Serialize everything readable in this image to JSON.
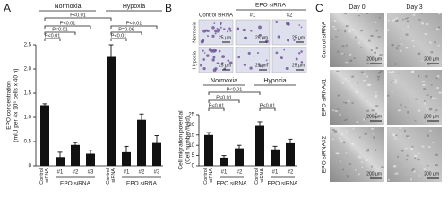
{
  "panel_labels": [
    "A",
    "B",
    "C"
  ],
  "chart_data": [
    {
      "type": "bar",
      "y_label": [
        "EPO concentration",
        "(mIU per 4x 10⁵ cells x 40 h)"
      ],
      "categories": [
        "Control siRNA",
        "#1",
        "#2",
        "#3",
        "Control siRNA",
        "#1",
        "#2",
        "#3"
      ],
      "group_labels": [
        "Normoxia",
        "Hypoxia"
      ],
      "subgroup_labels": [
        "EPO siRNA",
        "EPO siRNA"
      ],
      "values": [
        1.25,
        0.18,
        0.43,
        0.25,
        2.25,
        0.28,
        0.95,
        0.47
      ],
      "errors": [
        0.03,
        0.1,
        0.05,
        0.07,
        0.25,
        0.12,
        0.12,
        0.15
      ],
      "color": "#111111",
      "ylim": [
        0,
        2.5
      ],
      "yticks": [
        0,
        0.5,
        {
          "value": 1,
          "label": "1.0"
        },
        1.5,
        {
          "value": 2,
          "label": "2.0"
        },
        2.5
      ],
      "annotations": [
        "P<0.01",
        "P<0.01",
        "P<0.01",
        "P<0.01",
        "P<0.01",
        "P=0.06",
        "P<0.01"
      ]
    },
    {
      "type": "bar",
      "y_label": [
        "Cell migration potential",
        "(Cell number/field)"
      ],
      "categories": [
        "Control siRNA",
        "#1",
        "#2",
        "Control siRNA",
        "#1",
        "#2"
      ],
      "group_labels": [
        "Normoxia",
        "Hypoxia"
      ],
      "subgroup_labels": [
        "EPO siRNA",
        "EPO siRNA"
      ],
      "values": [
        15,
        4,
        8.5,
        19.5,
        8,
        11
      ],
      "errors": [
        1.2,
        1,
        1.5,
        2,
        1.5,
        2
      ],
      "color": "#111111",
      "ylim": [
        0,
        25
      ],
      "yticks": [
        0,
        5,
        10,
        15,
        20,
        25
      ],
      "annotations": [
        "P<0.01",
        "P<0.01",
        "P<0.01",
        "P<0.01"
      ]
    }
  ],
  "migration_images": {
    "header": "EPO siRNA",
    "columns": [
      "Control siRNA",
      "#1",
      "#2"
    ],
    "rows": [
      "Normoxia",
      "Hypoxia"
    ],
    "scale_bar": "25 µm"
  },
  "wound_images": {
    "columns": [
      "Day 0",
      "Day 3"
    ],
    "rows": [
      "Control siRNA",
      "EPO siRNA#1",
      "EPO siRNA#2"
    ],
    "scale_bar": "200 µm"
  }
}
